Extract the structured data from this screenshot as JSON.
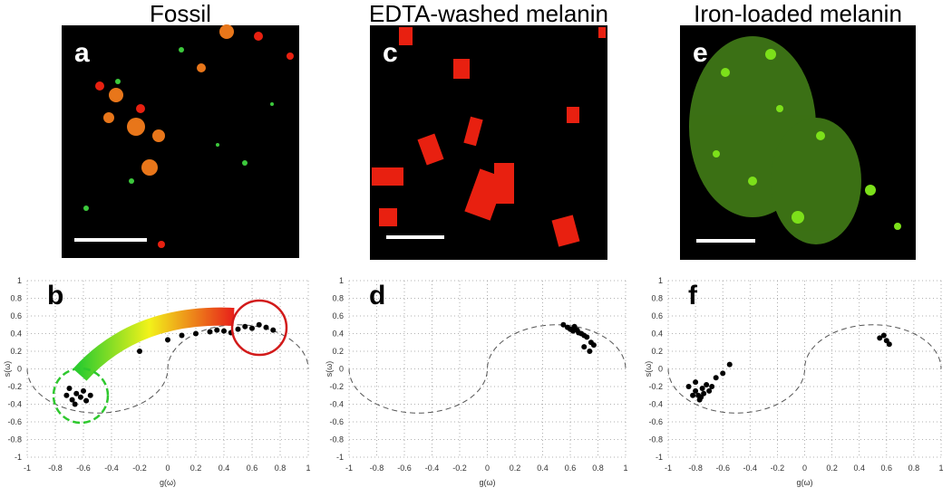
{
  "panels": [
    {
      "title": "Fossil",
      "label": "a"
    },
    {
      "title": "EDTA-washed melanin",
      "label": "c"
    },
    {
      "title": "Iron-loaded melanin",
      "label": "e"
    }
  ],
  "chart_data": [
    {
      "type": "scatter",
      "label": "b",
      "xlabel": "g(ω)",
      "ylabel": "s(ω)",
      "color": "#000000",
      "grid": true,
      "xlim": [
        -1,
        1
      ],
      "ylim": [
        -1,
        1
      ],
      "xticks": [
        -1,
        -0.8,
        -0.6,
        -0.4,
        -0.2,
        0,
        0.2,
        0.4,
        0.6,
        0.8,
        1
      ],
      "yticks": [
        -1,
        -0.8,
        -0.6,
        -0.4,
        -0.2,
        0,
        0.2,
        0.4,
        0.6,
        0.8,
        1
      ],
      "x": [
        -0.72,
        -0.68,
        -0.65,
        -0.62,
        -0.6,
        -0.7,
        -0.55,
        -0.66,
        -0.58,
        0.1,
        0.2,
        0.3,
        0.4,
        0.5,
        0.55,
        0.6,
        0.65,
        0.7,
        0.75,
        0.45,
        0.35,
        -0.2,
        0.0
      ],
      "y": [
        -0.3,
        -0.35,
        -0.28,
        -0.32,
        -0.25,
        -0.22,
        -0.3,
        -0.4,
        -0.36,
        0.38,
        0.4,
        0.42,
        0.43,
        0.45,
        0.48,
        0.46,
        0.5,
        0.47,
        0.44,
        0.41,
        0.44,
        0.2,
        0.33
      ]
    },
    {
      "type": "scatter",
      "label": "d",
      "xlabel": "g(ω)",
      "ylabel": "s(ω)",
      "color": "#000000",
      "grid": true,
      "xlim": [
        -1,
        1
      ],
      "ylim": [
        -1,
        1
      ],
      "xticks": [
        -1,
        -0.8,
        -0.6,
        -0.4,
        -0.2,
        0,
        0.2,
        0.4,
        0.6,
        0.8,
        1
      ],
      "yticks": [
        -1,
        -0.8,
        -0.6,
        -0.4,
        -0.2,
        0,
        0.2,
        0.4,
        0.6,
        0.8,
        1
      ],
      "x": [
        0.55,
        0.58,
        0.6,
        0.62,
        0.65,
        0.68,
        0.7,
        0.72,
        0.75,
        0.63,
        0.66,
        0.7,
        0.74,
        0.77
      ],
      "y": [
        0.5,
        0.47,
        0.45,
        0.43,
        0.44,
        0.4,
        0.38,
        0.36,
        0.3,
        0.48,
        0.41,
        0.25,
        0.2,
        0.27
      ]
    },
    {
      "type": "scatter",
      "label": "f",
      "xlabel": "g(ω)",
      "ylabel": "s(ω)",
      "color": "#000000",
      "grid": true,
      "xlim": [
        -1,
        1
      ],
      "ylim": [
        -1,
        1
      ],
      "xticks": [
        -1,
        -0.8,
        -0.6,
        -0.4,
        -0.2,
        0,
        0.2,
        0.4,
        0.6,
        0.8,
        1
      ],
      "yticks": [
        -1,
        -0.8,
        -0.6,
        -0.4,
        -0.2,
        0,
        0.2,
        0.4,
        0.6,
        0.8,
        1
      ],
      "x": [
        -0.85,
        -0.8,
        -0.78,
        -0.75,
        -0.72,
        -0.7,
        -0.82,
        -0.77,
        -0.74,
        -0.68,
        -0.65,
        -0.6,
        -0.55,
        -0.8,
        -0.76,
        0.55,
        0.6,
        0.62,
        0.58
      ],
      "y": [
        -0.2,
        -0.25,
        -0.3,
        -0.22,
        -0.18,
        -0.25,
        -0.3,
        -0.35,
        -0.28,
        -0.2,
        -0.1,
        -0.05,
        0.05,
        -0.15,
        -0.32,
        0.35,
        0.32,
        0.28,
        0.38
      ]
    }
  ]
}
